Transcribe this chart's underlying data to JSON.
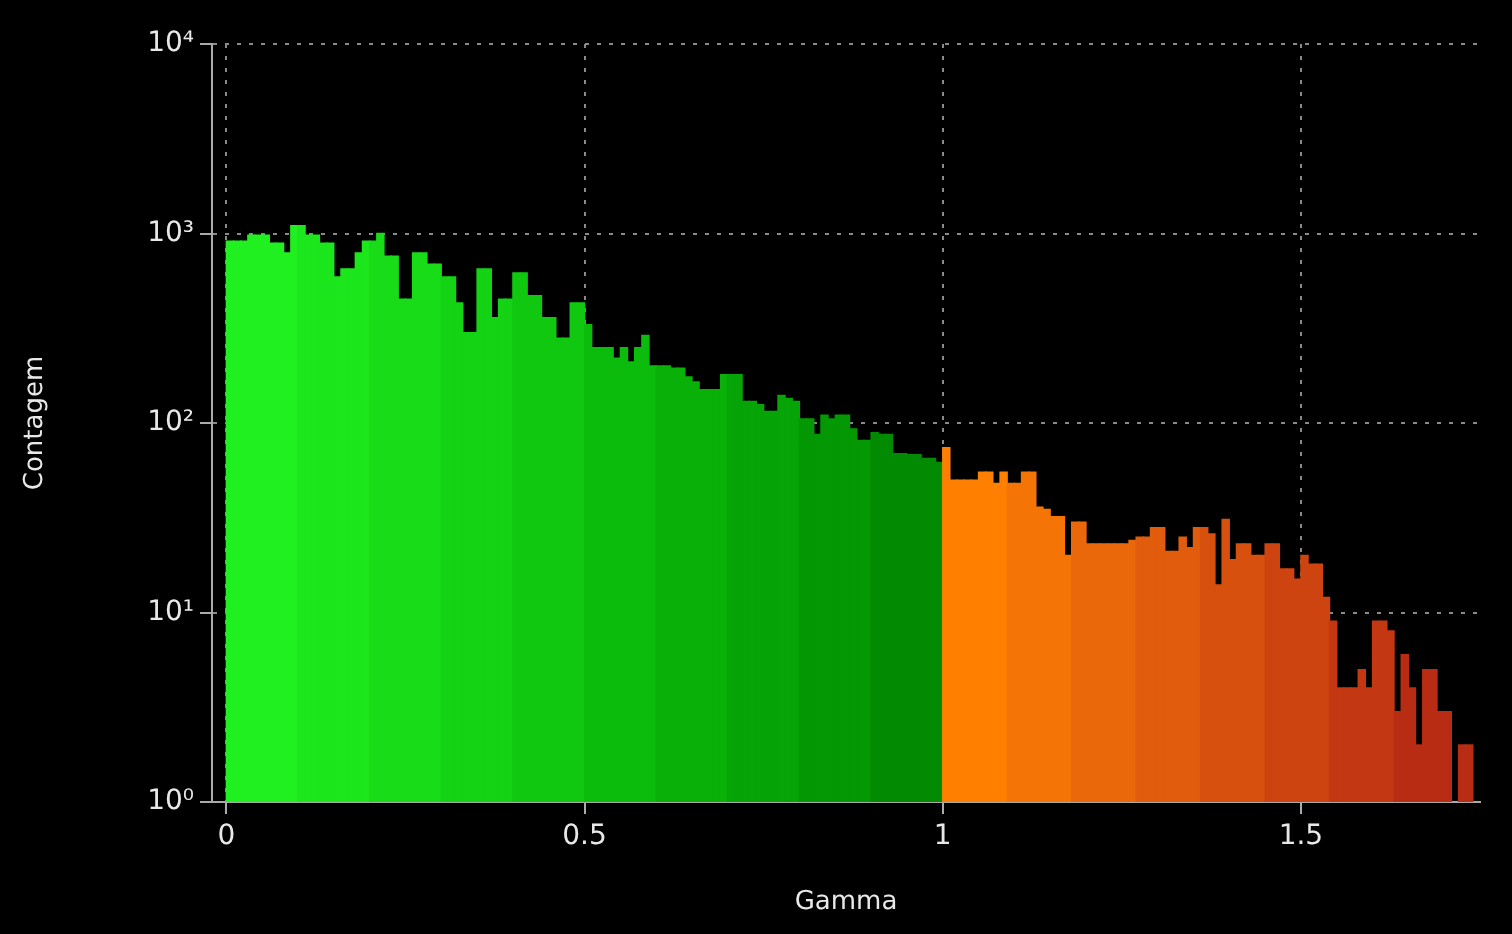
{
  "chart_data": {
    "type": "histogram",
    "xlabel": "Gamma",
    "ylabel": "Contagem",
    "bins": [
      0,
      0.01,
      0.02,
      0.03,
      0.04,
      0.05,
      0.06,
      0.07,
      0.08,
      0.09,
      0.1,
      0.11,
      0.12,
      0.13,
      0.14,
      0.15,
      0.16,
      0.17,
      0.18,
      0.19,
      0.2,
      0.21,
      0.22,
      0.23,
      0.24,
      0.25,
      0.26,
      0.27,
      0.28,
      0.29,
      0.3,
      0.31,
      0.32,
      0.33,
      0.34,
      0.35,
      0.36,
      0.37,
      0.38,
      0.39,
      0.4,
      0.41,
      0.42,
      0.43,
      0.44,
      0.45,
      0.46,
      0.47,
      0.48,
      0.49,
      0.5,
      0.51,
      0.52,
      0.53,
      0.54,
      0.55,
      0.56,
      0.57,
      0.58,
      0.59,
      0.6,
      0.61,
      0.62,
      0.63,
      0.64,
      0.65,
      0.66,
      0.67,
      0.68,
      0.69,
      0.7,
      0.71,
      0.72,
      0.73,
      0.74,
      0.75,
      0.76,
      0.77,
      0.78,
      0.79,
      0.8,
      0.81,
      0.82,
      0.83,
      0.84,
      0.85,
      0.86,
      0.87,
      0.88,
      0.89,
      0.9,
      0.91,
      0.92,
      0.93,
      0.94,
      0.95,
      0.96,
      0.97,
      0.98,
      0.99,
      1,
      1.01,
      1.02,
      1.03,
      1.04,
      1.05,
      1.06,
      1.07,
      1.08,
      1.09,
      1.1,
      1.11,
      1.12,
      1.13,
      1.14,
      1.15,
      1.16,
      1.17,
      1.18,
      1.19,
      1.2,
      1.21,
      1.22,
      1.23,
      1.24,
      1.25,
      1.26,
      1.27,
      1.28,
      1.29,
      1.3,
      1.31,
      1.32,
      1.33,
      1.34,
      1.35,
      1.36,
      1.37,
      1.38,
      1.39,
      1.4,
      1.41,
      1.42,
      1.43,
      1.44,
      1.45,
      1.46,
      1.47,
      1.48,
      1.49,
      1.5,
      1.51,
      1.52,
      1.53,
      1.54,
      1.55,
      1.56,
      1.57,
      1.58,
      1.59,
      1.6,
      1.61,
      1.62,
      1.63,
      1.64,
      1.65,
      1.66,
      1.67,
      1.68,
      1.69,
      1.7,
      1.71,
      1.72,
      1.73,
      1.74
    ],
    "values": [
      910,
      910,
      910,
      980,
      980,
      980,
      890,
      890,
      790,
      1100,
      1100,
      980,
      980,
      890,
      890,
      590,
      650,
      650,
      790,
      910,
      910,
      1000,
      760,
      760,
      450,
      450,
      790,
      790,
      690,
      690,
      590,
      590,
      430,
      300,
      300,
      650,
      650,
      360,
      450,
      450,
      620,
      620,
      470,
      470,
      360,
      360,
      280,
      280,
      430,
      430,
      330,
      250,
      250,
      250,
      220,
      250,
      210,
      250,
      290,
      200,
      200,
      200,
      195,
      195,
      175,
      165,
      150,
      150,
      150,
      180,
      180,
      180,
      130,
      130,
      125,
      115,
      115,
      140,
      135,
      130,
      105,
      105,
      87,
      110,
      105,
      110,
      110,
      93,
      81,
      81,
      89,
      87,
      87,
      69,
      69,
      68,
      68,
      65,
      65,
      62,
      74,
      50,
      50,
      50,
      50,
      55,
      55,
      48,
      55,
      48,
      48,
      55,
      55,
      36,
      35,
      32,
      32,
      20,
      30,
      30,
      23,
      23,
      23,
      23,
      23,
      23,
      24,
      25,
      25,
      28,
      28,
      21,
      21,
      25,
      22,
      28,
      28,
      26,
      14,
      31,
      19,
      23,
      23,
      20,
      20,
      23,
      23,
      17,
      17,
      15,
      20,
      18,
      18,
      12,
      9,
      4,
      4,
      4,
      5,
      4,
      9,
      9,
      8,
      3,
      6,
      4,
      2,
      5,
      5,
      3,
      3,
      null,
      2,
      2
    ],
    "colors": [
      "#20f020",
      "#20f020",
      "#20f020",
      "#20f020",
      "#20f020",
      "#20f020",
      "#20f020",
      "#20f020",
      "#20f020",
      "#20f020",
      "#1ce61c",
      "#1ce61c",
      "#1ce61c",
      "#1ce61c",
      "#1ce61c",
      "#1ce61c",
      "#1ce61c",
      "#1ce61c",
      "#1ce61c",
      "#1ce61c",
      "#18dc18",
      "#18dc18",
      "#18dc18",
      "#18dc18",
      "#18dc18",
      "#18dc18",
      "#18dc18",
      "#18dc18",
      "#18dc18",
      "#18dc18",
      "#14d214",
      "#14d214",
      "#14d214",
      "#14d214",
      "#14d214",
      "#14d214",
      "#14d214",
      "#14d214",
      "#14d214",
      "#14d214",
      "#10c810",
      "#10c810",
      "#10c810",
      "#10c810",
      "#10c810",
      "#10c810",
      "#10c810",
      "#10c810",
      "#10c810",
      "#10c810",
      "#0cbc0c",
      "#0cbc0c",
      "#0cbc0c",
      "#0cbc0c",
      "#0cbc0c",
      "#0cbc0c",
      "#0cbc0c",
      "#0cbc0c",
      "#0cbc0c",
      "#0cbc0c",
      "#08b008",
      "#08b008",
      "#08b008",
      "#08b008",
      "#08b008",
      "#08b008",
      "#08b008",
      "#08b008",
      "#08b008",
      "#08b008",
      "#06a406",
      "#06a406",
      "#06a406",
      "#06a406",
      "#06a406",
      "#06a406",
      "#06a406",
      "#06a406",
      "#06a406",
      "#06a406",
      "#049804",
      "#049804",
      "#049804",
      "#049804",
      "#049804",
      "#049804",
      "#049804",
      "#049804",
      "#049804",
      "#049804",
      "#028a02",
      "#028a02",
      "#028a02",
      "#028a02",
      "#028a02",
      "#028a02",
      "#028a02",
      "#028a02",
      "#028a02",
      "#028a02",
      "#ff8000",
      "#ff8000",
      "#ff8000",
      "#ff8000",
      "#ff8000",
      "#ff8000",
      "#ff8000",
      "#ff8000",
      "#ff8000",
      "#f57406",
      "#f57406",
      "#f57406",
      "#f57406",
      "#f57406",
      "#f57406",
      "#f57406",
      "#f57406",
      "#f57406",
      "#eb680a",
      "#eb680a",
      "#eb680a",
      "#eb680a",
      "#eb680a",
      "#eb680a",
      "#eb680a",
      "#eb680a",
      "#eb680a",
      "#e15c0c",
      "#e15c0c",
      "#e15c0c",
      "#e15c0c",
      "#e15c0c",
      "#e15c0c",
      "#e15c0c",
      "#e15c0c",
      "#e15c0c",
      "#d7500e",
      "#d7500e",
      "#d7500e",
      "#d7500e",
      "#d7500e",
      "#d7500e",
      "#d7500e",
      "#d7500e",
      "#d7500e",
      "#cd4410",
      "#cd4410",
      "#cd4410",
      "#cd4410",
      "#cd4410",
      "#cd4410",
      "#cd4410",
      "#cd4410",
      "#cd4410",
      "#c33812",
      "#c33812",
      "#c33812",
      "#c33812",
      "#c33812",
      "#c33812",
      "#c33812",
      "#c33812",
      "#c33812",
      "#b92c14",
      "#b92c14",
      "#b92c14",
      "#b92c14",
      "#b92c14",
      "#b92c14",
      "#b92c14",
      "#b92c14",
      "#b92c14",
      "#b92c14",
      "#b92c14"
    ],
    "xlim": [
      -0.02,
      1.75
    ],
    "xticks": [
      0,
      0.5,
      1,
      1.5
    ],
    "ylim": [
      1,
      10000
    ],
    "yticks": [
      {
        "value": 1,
        "label": "10⁰"
      },
      {
        "value": 10,
        "label": "10¹"
      },
      {
        "value": 100,
        "label": "10²"
      },
      {
        "value": 1000,
        "label": "10³"
      },
      {
        "value": 10000,
        "label": "10⁴"
      }
    ],
    "log": "y",
    "grid": true,
    "legend": false
  }
}
